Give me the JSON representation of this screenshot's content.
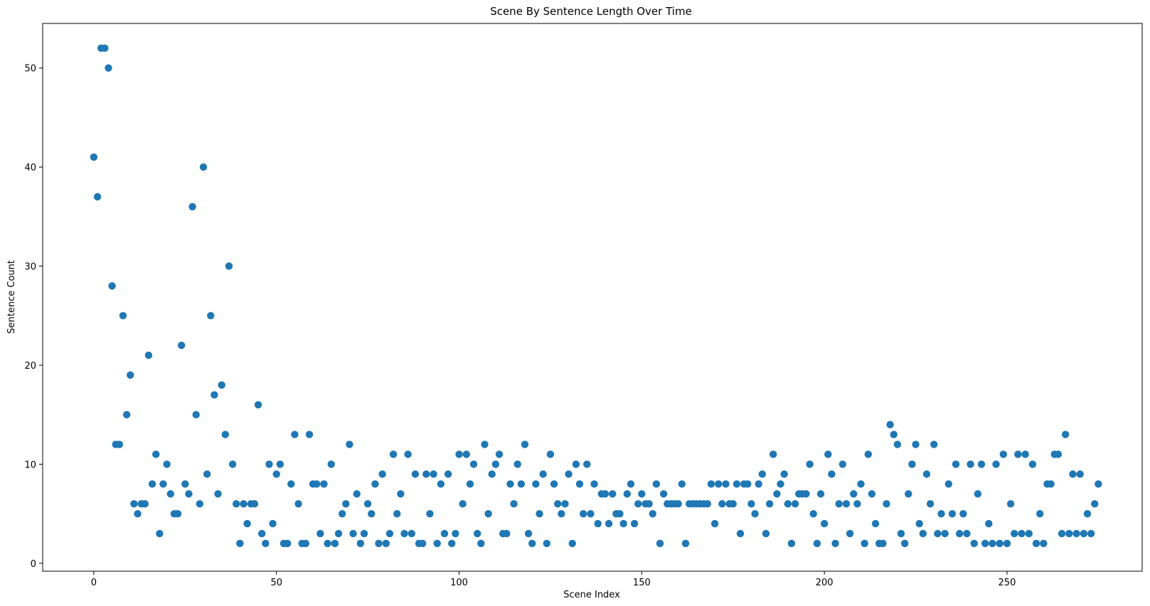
{
  "chart_data": {
    "type": "scatter",
    "title": "Scene By Sentence Length Over Time",
    "xlabel": "Scene Index",
    "ylabel": "Sentence Count",
    "xlim": [
      -14,
      287
    ],
    "ylim": [
      -0.8,
      54.5
    ],
    "xticks": [
      0,
      50,
      100,
      150,
      200,
      250
    ],
    "yticks": [
      0,
      10,
      20,
      30,
      40,
      50
    ],
    "grid": false,
    "point_color": "#1f77b4",
    "series": [
      {
        "x": [
          0,
          1,
          2,
          3,
          4,
          5,
          6,
          7,
          8,
          9,
          10,
          11,
          12,
          13,
          14,
          15,
          16,
          17,
          18,
          19,
          20,
          21,
          22,
          23,
          24,
          25,
          26,
          27,
          28,
          29,
          30,
          31,
          32,
          33,
          34,
          35,
          36,
          37,
          38,
          39,
          40,
          41,
          42,
          43,
          44,
          45,
          46,
          47,
          48,
          49,
          50,
          51,
          52,
          53,
          54,
          55,
          56,
          57,
          58,
          59,
          60,
          61,
          62,
          63,
          64,
          65,
          66,
          67,
          68,
          69,
          70,
          71,
          72,
          73,
          74,
          75,
          76,
          77,
          78,
          79,
          80,
          81,
          82,
          83,
          84,
          85,
          86,
          87,
          88,
          89,
          90,
          91,
          92,
          93,
          94,
          95,
          96,
          97,
          98,
          99,
          100,
          101,
          102,
          103,
          104,
          105,
          106,
          107,
          108,
          109,
          110,
          111,
          112,
          113,
          114,
          115,
          116,
          117,
          118,
          119,
          120,
          121,
          122,
          123,
          124,
          125,
          126,
          127,
          128,
          129,
          130,
          131,
          132,
          133,
          134,
          135,
          136,
          137,
          138,
          139,
          140,
          141,
          142,
          143,
          144,
          145,
          146,
          147,
          148,
          149,
          150,
          151,
          152,
          153,
          154,
          155,
          156,
          157,
          158,
          159,
          160,
          161,
          162,
          163,
          164,
          165,
          166,
          167,
          168,
          169,
          170,
          171,
          172,
          173,
          174,
          175,
          176,
          177,
          178,
          179,
          180,
          181,
          182,
          183,
          184,
          185,
          186,
          187,
          188,
          189,
          190,
          191,
          192,
          193,
          194,
          195,
          196,
          197,
          198,
          199,
          200,
          201,
          202,
          203,
          204,
          205,
          206,
          207,
          208,
          209,
          210,
          211,
          212,
          213,
          214,
          215,
          216,
          217,
          218,
          219,
          220,
          221,
          222,
          223,
          224,
          225,
          226,
          227,
          228,
          229,
          230,
          231,
          232,
          233,
          234,
          235,
          236,
          237,
          238,
          239,
          240,
          241,
          242,
          243,
          244,
          245,
          246,
          247,
          248,
          249,
          250,
          251,
          252,
          253,
          254,
          255,
          256,
          257,
          258,
          259,
          260,
          261,
          262,
          263,
          264,
          265,
          266,
          267,
          268,
          269,
          270,
          271,
          272,
          273,
          274,
          275
        ],
        "y": [
          41,
          37,
          52,
          52,
          50,
          28,
          12,
          12,
          25,
          15,
          19,
          6,
          5,
          6,
          6,
          21,
          8,
          11,
          3,
          8,
          10,
          7,
          5,
          5,
          22,
          8,
          7,
          36,
          15,
          6,
          40,
          9,
          25,
          17,
          7,
          18,
          13,
          30,
          10,
          6,
          2,
          6,
          4,
          6,
          6,
          16,
          3,
          2,
          10,
          4,
          9,
          10,
          2,
          2,
          8,
          13,
          6,
          2,
          2,
          13,
          8,
          8,
          3,
          8,
          2,
          10,
          2,
          3,
          5,
          6,
          12,
          3,
          7,
          2,
          3,
          6,
          5,
          8,
          2,
          9,
          2,
          3,
          11,
          5,
          7,
          3,
          11,
          3,
          9,
          2,
          2,
          9,
          5,
          9,
          2,
          8,
          3,
          9,
          2,
          3,
          11,
          6,
          11,
          8,
          10,
          3,
          2,
          12,
          5,
          9,
          10,
          11,
          3,
          3,
          8,
          6,
          10,
          8,
          12,
          3,
          2,
          8,
          5,
          9,
          2,
          11,
          8,
          6,
          5,
          6,
          9,
          2,
          10,
          8,
          5,
          10,
          5,
          8,
          4,
          7,
          7,
          4,
          7,
          5,
          5,
          4,
          7,
          8,
          4,
          6,
          7,
          6,
          6,
          5,
          8,
          2,
          7,
          6,
          6,
          6,
          6,
          8,
          2,
          6,
          6,
          6,
          6,
          6,
          6,
          8,
          4,
          8,
          6,
          8,
          6,
          6,
          8,
          3,
          8,
          8,
          6,
          5,
          8,
          9,
          3,
          6,
          11,
          7,
          8,
          9,
          6,
          2,
          6,
          7,
          7,
          7,
          10,
          5,
          2,
          7,
          4,
          11,
          9,
          2,
          6,
          10,
          6,
          3,
          7,
          6,
          8,
          2,
          11,
          7,
          4,
          2,
          2,
          6,
          14,
          13,
          12,
          3,
          2,
          7,
          10,
          12,
          4,
          3,
          9,
          6,
          12,
          3,
          5,
          3,
          8,
          5,
          10,
          3,
          5,
          3,
          10,
          2,
          7,
          10,
          2,
          4,
          2,
          10,
          2,
          11,
          2,
          6,
          3,
          11,
          3,
          11,
          3,
          10,
          2,
          5,
          2,
          8,
          8,
          11,
          11,
          3,
          13,
          3,
          9,
          3,
          9,
          3,
          5,
          3,
          6,
          8
        ]
      }
    ]
  }
}
